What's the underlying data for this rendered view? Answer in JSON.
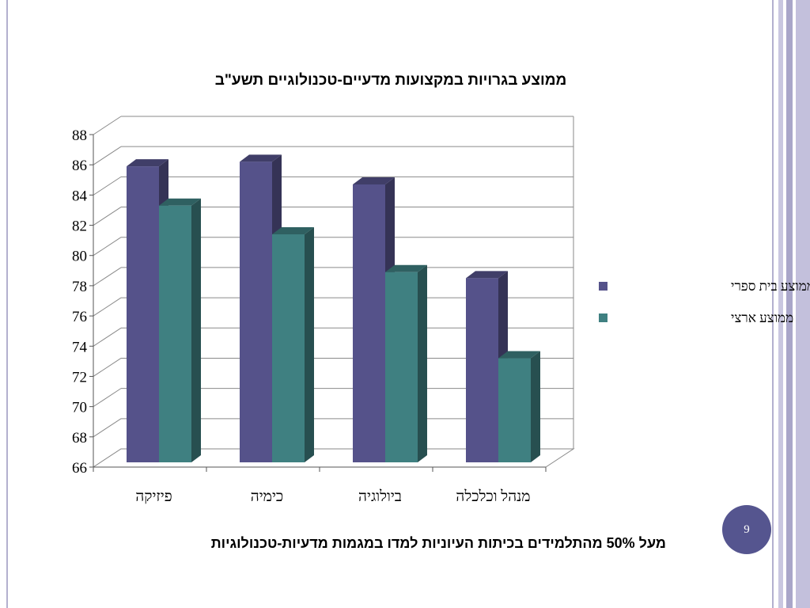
{
  "slide": {
    "page_number": "9",
    "footnote": "מעל 50% מהתלמידים בכיתות העיוניות למדו במגמות מדעיות-טכנולוגיות"
  },
  "colors": {
    "series_school": "#55528a",
    "series_national": "#3f8081",
    "frame_accent": "#b3b0cf",
    "badge": "#55558f"
  },
  "chart_data": {
    "type": "bar",
    "style": "3d-clustered-column",
    "title": "ממוצע בגרויות במקצועות מדעיים-טכנולוגיים תשע\"ב",
    "xlabel": "",
    "ylabel": "",
    "categories": [
      "פיזיקה",
      "כימיה",
      "ביולוגיה",
      "מנהל וכלכלה"
    ],
    "series": [
      {
        "name": "ממוצע בית ספרי",
        "values": [
          85.9,
          86.2,
          84.7,
          78.5
        ]
      },
      {
        "name": "ממוצע ארצי",
        "values": [
          83.3,
          81.4,
          78.9,
          73.2
        ]
      }
    ],
    "ylim": [
      66,
      88
    ],
    "yticks": [
      "66",
      "68",
      "70",
      "72",
      "74",
      "76",
      "78",
      "80",
      "82",
      "84",
      "86",
      "88"
    ],
    "grid": true,
    "legend_position": "right"
  }
}
